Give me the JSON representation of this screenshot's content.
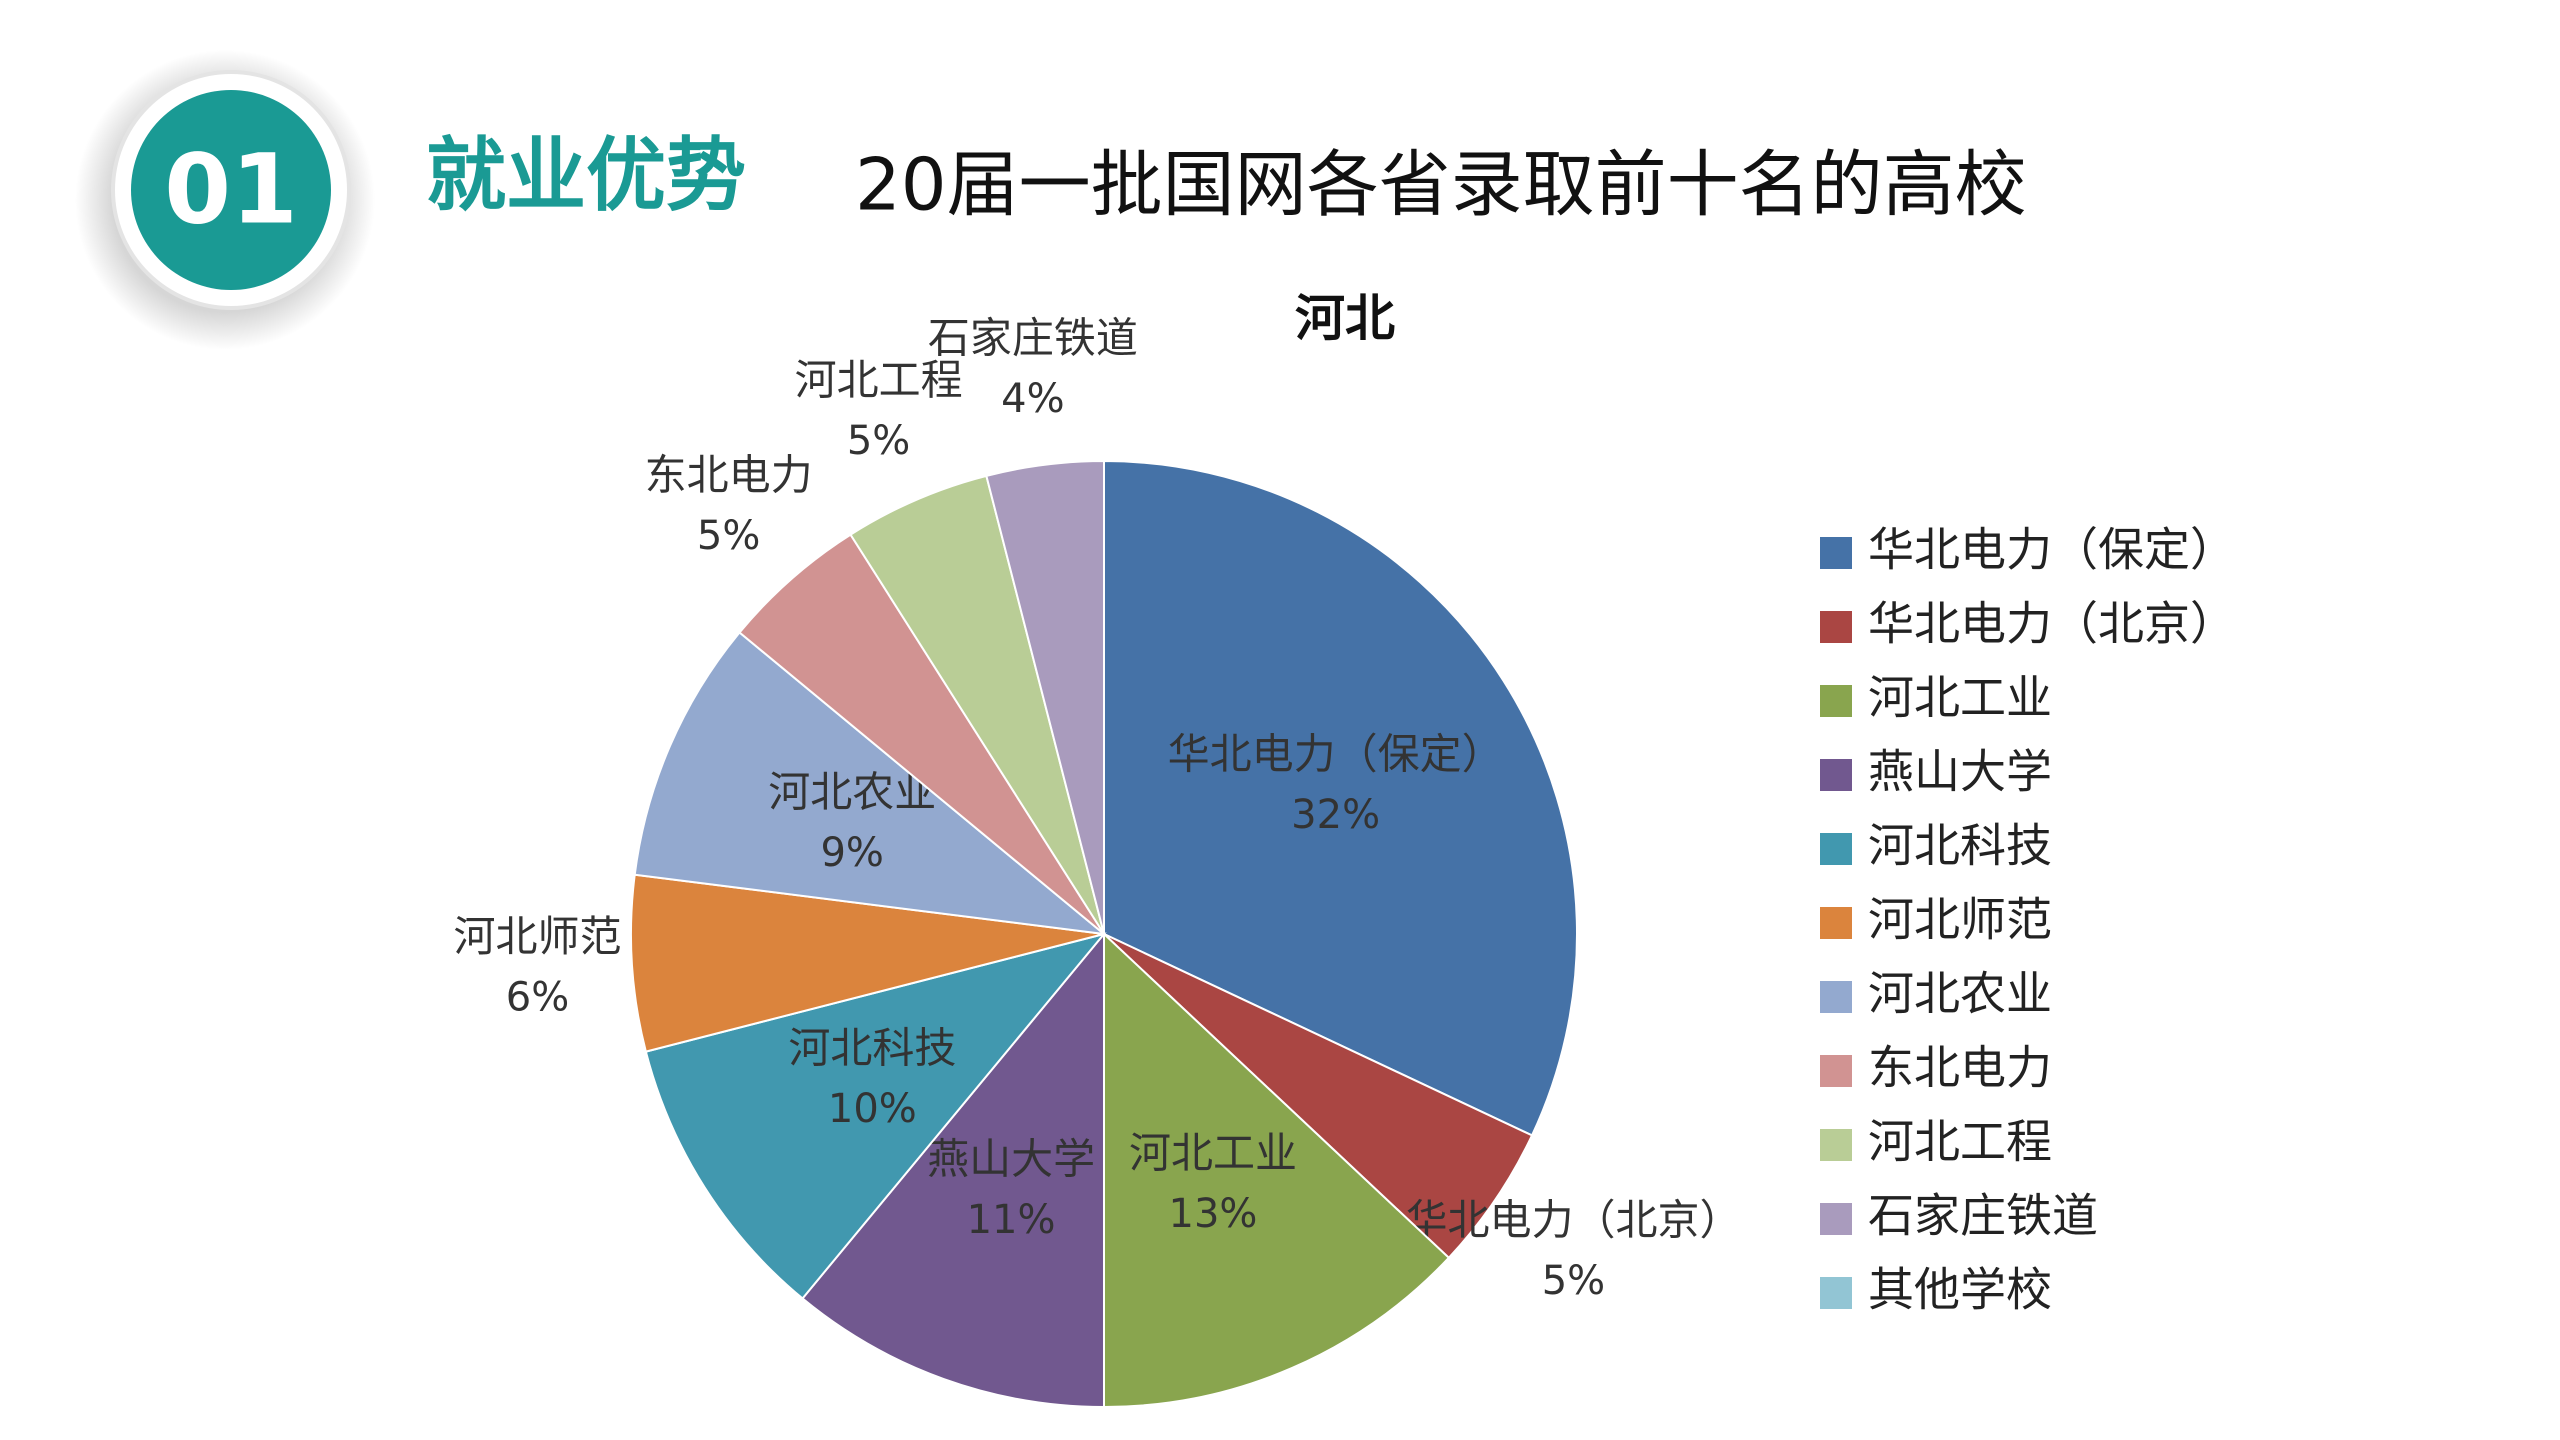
{
  "header": {
    "badge": "01",
    "title": "就业优势",
    "subtitle": "20届一批国网各省录取前十名的高校"
  },
  "chart_data": {
    "type": "pie",
    "title": "河北",
    "categories": [
      "华北电力（保定）",
      "华北电力（北京）",
      "河北工业",
      "燕山大学",
      "河北科技",
      "河北师范",
      "河北农业",
      "东北电力",
      "河北工程",
      "石家庄铁道",
      "其他学校"
    ],
    "values": [
      32,
      5,
      13,
      11,
      10,
      6,
      9,
      5,
      5,
      4,
      0
    ],
    "value_labels": [
      "32%",
      "5%",
      "13%",
      "11%",
      "10%",
      "6%",
      "9%",
      "5%",
      "5%",
      "4%",
      null
    ],
    "colors": [
      "#4572a7",
      "#aa4643",
      "#89a54e",
      "#71588f",
      "#4198af",
      "#db843d",
      "#93a9cf",
      "#d19392",
      "#b9cd96",
      "#a99bbd",
      "#92c5d4"
    ],
    "legend": "right"
  }
}
